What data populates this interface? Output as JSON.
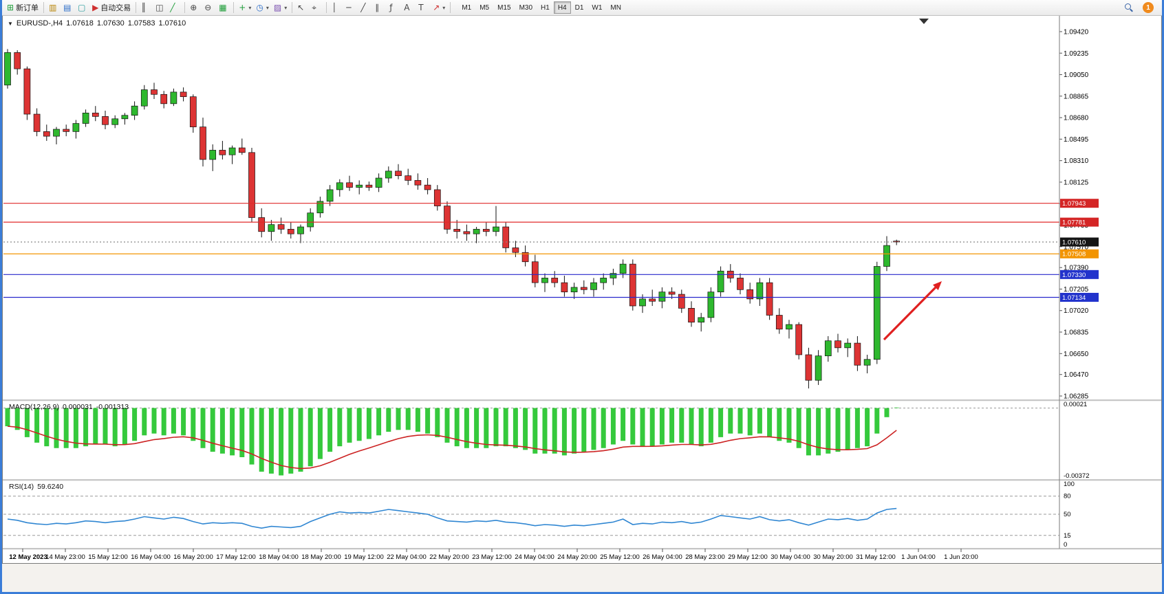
{
  "toolbar": {
    "new_order": "新订单",
    "auto_trading": "自动交易",
    "timeframes": [
      "M1",
      "M5",
      "M15",
      "M30",
      "H1",
      "H4",
      "D1",
      "W1",
      "MN"
    ],
    "active_timeframe": "H4",
    "notification_badge": "1"
  },
  "icons": {
    "new_order": "⊞",
    "profiles": "▥",
    "market_watch": "▤",
    "navigator": "▢",
    "auto_trading": "▶",
    "bars": "║",
    "candles": "◫",
    "line_chart": "╱",
    "zoom_in": "⊕",
    "zoom_out": "⊖",
    "tile": "▦",
    "indicators": "+",
    "periods": "◷",
    "templates": "▨",
    "cursor": "↖",
    "crosshair": "⌖",
    "vline": "│",
    "hline": "─",
    "trendline": "╱",
    "channel": "∥",
    "fibonacci": "ƒ",
    "text": "A",
    "label": "T",
    "arrows": "↗",
    "caret": "▾",
    "collapse": "▼"
  },
  "chart_header": {
    "symbol_period": "EURUSD-,H4",
    "open": "1.07618",
    "high": "1.07630",
    "low": "1.07583",
    "close": "1.07610"
  },
  "price_axis": {
    "labels": [
      "1.09420",
      "1.09235",
      "1.09050",
      "1.08865",
      "1.08680",
      "1.08495",
      "1.08310",
      "1.08125",
      "1.07940",
      "1.07755",
      "1.07570",
      "1.07390",
      "1.07205",
      "1.07020",
      "1.06835",
      "1.06650",
      "1.06470",
      "1.06285"
    ],
    "tags": [
      {
        "text": "1.07943",
        "price": 1.07943,
        "bg": "#d42525",
        "line": "#e02828",
        "style": "solid"
      },
      {
        "text": "1.07781",
        "price": 1.07781,
        "bg": "#d42525",
        "line": "#e02828",
        "style": "solid"
      },
      {
        "text": "1.07610",
        "price": 1.0761,
        "bg": "#151515",
        "line": "#888888",
        "style": "dotted"
      },
      {
        "text": "1.07508",
        "price": 1.07508,
        "bg": "#f29400",
        "line": "#f29400",
        "style": "solid"
      },
      {
        "text": "1.07330",
        "price": 1.0733,
        "bg": "#2233cc",
        "line": "#2727cc",
        "style": "solid"
      },
      {
        "text": "1.07134",
        "price": 1.07134,
        "bg": "#2233cc",
        "line": "#2727cc",
        "style": "solid"
      }
    ]
  },
  "chart_data": {
    "type": "candlestick",
    "title": "EURUSD- H4",
    "y_range": [
      1.06285,
      1.0942
    ],
    "colors": {
      "up": "#2eb82e",
      "down": "#dd3434"
    },
    "x_labels": [
      "12 May 2023",
      "14 May 23:00",
      "15 May 12:00",
      "16 May 04:00",
      "16 May 20:00",
      "17 May 12:00",
      "18 May 04:00",
      "18 May 20:00",
      "19 May 12:00",
      "22 May 04:00",
      "22 May 20:00",
      "23 May 12:00",
      "24 May 04:00",
      "24 May 20:00",
      "25 May 12:00",
      "26 May 04:00",
      "28 May 23:00",
      "29 May 12:00",
      "30 May 04:00",
      "30 May 20:00",
      "31 May 12:00",
      "1 Jun 04:00",
      "1 Jun 20:00"
    ],
    "candles": [
      [
        1.0896,
        1.0927,
        1.0893,
        1.0924
      ],
      [
        1.0924,
        1.0926,
        1.0905,
        1.091
      ],
      [
        1.091,
        1.0912,
        1.0866,
        1.0871
      ],
      [
        1.0871,
        1.0876,
        1.0852,
        1.0856
      ],
      [
        1.0856,
        1.0862,
        1.0848,
        1.0852
      ],
      [
        1.0852,
        1.086,
        1.0845,
        1.0858
      ],
      [
        1.0858,
        1.0862,
        1.0852,
        1.0856
      ],
      [
        1.0856,
        1.0866,
        1.085,
        1.0863
      ],
      [
        1.0863,
        1.0875,
        1.086,
        1.0872
      ],
      [
        1.0872,
        1.0878,
        1.0865,
        1.0869
      ],
      [
        1.0869,
        1.0874,
        1.0858,
        1.0862
      ],
      [
        1.0862,
        1.087,
        1.0859,
        1.0867
      ],
      [
        1.0867,
        1.0872,
        1.0862,
        1.087
      ],
      [
        1.087,
        1.0882,
        1.0866,
        1.0878
      ],
      [
        1.0878,
        1.0896,
        1.0875,
        1.0892
      ],
      [
        1.0892,
        1.0898,
        1.0884,
        1.0888
      ],
      [
        1.0888,
        1.0891,
        1.0876,
        1.088
      ],
      [
        1.088,
        1.0893,
        1.0878,
        1.089
      ],
      [
        1.089,
        1.0894,
        1.0882,
        1.0886
      ],
      [
        1.0886,
        1.0888,
        1.0855,
        1.086
      ],
      [
        1.086,
        1.0868,
        1.0826,
        1.0832
      ],
      [
        1.0832,
        1.0845,
        1.0822,
        1.084
      ],
      [
        1.084,
        1.0848,
        1.0832,
        1.0836
      ],
      [
        1.0836,
        1.0844,
        1.0828,
        1.0842
      ],
      [
        1.0842,
        1.085,
        1.0836,
        1.0838
      ],
      [
        1.0838,
        1.0842,
        1.0778,
        1.0782
      ],
      [
        1.0782,
        1.079,
        1.0765,
        1.077
      ],
      [
        1.077,
        1.078,
        1.0762,
        1.0776
      ],
      [
        1.0776,
        1.0782,
        1.0768,
        1.0772
      ],
      [
        1.0772,
        1.0778,
        1.0764,
        1.0768
      ],
      [
        1.0768,
        1.0776,
        1.076,
        1.0774
      ],
      [
        1.0774,
        1.079,
        1.077,
        1.0786
      ],
      [
        1.0786,
        1.08,
        1.0782,
        1.0796
      ],
      [
        1.0796,
        1.081,
        1.0792,
        1.0806
      ],
      [
        1.0806,
        1.0815,
        1.08,
        1.0812
      ],
      [
        1.0812,
        1.0818,
        1.0805,
        1.0808
      ],
      [
        1.0808,
        1.0814,
        1.0802,
        1.081
      ],
      [
        1.081,
        1.0813,
        1.0805,
        1.0808
      ],
      [
        1.0808,
        1.082,
        1.0804,
        1.0816
      ],
      [
        1.0816,
        1.0826,
        1.0812,
        1.0822
      ],
      [
        1.0822,
        1.0828,
        1.0815,
        1.0818
      ],
      [
        1.0818,
        1.0824,
        1.081,
        1.0814
      ],
      [
        1.0814,
        1.082,
        1.0806,
        1.081
      ],
      [
        1.081,
        1.0816,
        1.0802,
        1.0806
      ],
      [
        1.0806,
        1.081,
        1.0788,
        1.0792
      ],
      [
        1.0792,
        1.0796,
        1.0768,
        1.0772
      ],
      [
        1.0772,
        1.078,
        1.0764,
        1.077
      ],
      [
        1.077,
        1.0776,
        1.0762,
        1.0768
      ],
      [
        1.0768,
        1.0774,
        1.076,
        1.0772
      ],
      [
        1.0772,
        1.0778,
        1.0766,
        1.077
      ],
      [
        1.077,
        1.0792,
        1.0766,
        1.0774
      ],
      [
        1.0774,
        1.0778,
        1.0752,
        1.0756
      ],
      [
        1.0756,
        1.0762,
        1.0748,
        1.0752
      ],
      [
        1.0752,
        1.0758,
        1.074,
        1.0744
      ],
      [
        1.0744,
        1.075,
        1.0722,
        1.0726
      ],
      [
        1.0726,
        1.0734,
        1.0718,
        1.073
      ],
      [
        1.073,
        1.0736,
        1.0722,
        1.0726
      ],
      [
        1.0726,
        1.0732,
        1.0714,
        1.0718
      ],
      [
        1.0718,
        1.0726,
        1.0712,
        1.0722
      ],
      [
        1.0722,
        1.0728,
        1.0716,
        1.072
      ],
      [
        1.072,
        1.073,
        1.0714,
        1.0726
      ],
      [
        1.0726,
        1.0734,
        1.072,
        1.073
      ],
      [
        1.073,
        1.0738,
        1.0724,
        1.0734
      ],
      [
        1.0734,
        1.0746,
        1.073,
        1.0742
      ],
      [
        1.0742,
        1.0746,
        1.0702,
        1.0706
      ],
      [
        1.0706,
        1.0716,
        1.07,
        1.0712
      ],
      [
        1.0712,
        1.072,
        1.0706,
        1.071
      ],
      [
        1.071,
        1.0722,
        1.0704,
        1.0718
      ],
      [
        1.0718,
        1.0722,
        1.0712,
        1.0716
      ],
      [
        1.0716,
        1.072,
        1.07,
        1.0704
      ],
      [
        1.0704,
        1.071,
        1.0688,
        1.0692
      ],
      [
        1.0692,
        1.07,
        1.0684,
        1.0696
      ],
      [
        1.0696,
        1.0722,
        1.0692,
        1.0718
      ],
      [
        1.0718,
        1.074,
        1.0714,
        1.0736
      ],
      [
        1.0736,
        1.0742,
        1.0726,
        1.073
      ],
      [
        1.073,
        1.0734,
        1.0716,
        1.072
      ],
      [
        1.072,
        1.0726,
        1.0708,
        1.0712
      ],
      [
        1.0712,
        1.073,
        1.0706,
        1.0726
      ],
      [
        1.0726,
        1.073,
        1.0694,
        1.0698
      ],
      [
        1.0698,
        1.0704,
        1.0682,
        1.0686
      ],
      [
        1.0686,
        1.0694,
        1.0678,
        1.069
      ],
      [
        1.069,
        1.0692,
        1.066,
        1.0664
      ],
      [
        1.0664,
        1.067,
        1.0635,
        1.0642
      ],
      [
        1.0642,
        1.0668,
        1.0638,
        1.0663
      ],
      [
        1.0663,
        1.068,
        1.0658,
        1.0676
      ],
      [
        1.0676,
        1.0682,
        1.0666,
        1.067
      ],
      [
        1.067,
        1.0678,
        1.0662,
        1.0674
      ],
      [
        1.0674,
        1.068,
        1.065,
        1.0655
      ],
      [
        1.0655,
        1.0664,
        1.0648,
        1.066
      ],
      [
        1.066,
        1.0744,
        1.0656,
        1.074
      ],
      [
        1.074,
        1.0766,
        1.0736,
        1.0758
      ],
      [
        1.07618,
        1.0763,
        1.07583,
        1.0761
      ]
    ]
  },
  "macd": {
    "name": "MACD(12,26,9)",
    "value": "0.000031",
    "signal_value": "-0.001313",
    "axis_labels": [
      {
        "text": "0.00021",
        "value": 0.00021
      },
      {
        "text": "-0.00372",
        "value": -0.00372
      }
    ],
    "values": [
      -0.001,
      -0.0012,
      -0.0016,
      -0.0019,
      -0.0021,
      -0.0022,
      -0.0022,
      -0.0022,
      -0.0021,
      -0.002,
      -0.002,
      -0.0021,
      -0.002,
      -0.0018,
      -0.0015,
      -0.0014,
      -0.0015,
      -0.0014,
      -0.0015,
      -0.0018,
      -0.0022,
      -0.0024,
      -0.0025,
      -0.0026,
      -0.0027,
      -0.0031,
      -0.0035,
      -0.0036,
      -0.0037,
      -0.0036,
      -0.0035,
      -0.0032,
      -0.0028,
      -0.0024,
      -0.0021,
      -0.0019,
      -0.0018,
      -0.0017,
      -0.0015,
      -0.0013,
      -0.0012,
      -0.0012,
      -0.0013,
      -0.0014,
      -0.0016,
      -0.0019,
      -0.0021,
      -0.0022,
      -0.0022,
      -0.0022,
      -0.0021,
      -0.0021,
      -0.0022,
      -0.0023,
      -0.0025,
      -0.0025,
      -0.0025,
      -0.0026,
      -0.0025,
      -0.0024,
      -0.0023,
      -0.0022,
      -0.002,
      -0.0018,
      -0.002,
      -0.0021,
      -0.0021,
      -0.002,
      -0.0019,
      -0.0019,
      -0.002,
      -0.0021,
      -0.0019,
      -0.0016,
      -0.0014,
      -0.0014,
      -0.0015,
      -0.0014,
      -0.0016,
      -0.0018,
      -0.0019,
      -0.0022,
      -0.0026,
      -0.0026,
      -0.0025,
      -0.0024,
      -0.0023,
      -0.0022,
      -0.0021,
      -0.0014,
      -0.0005,
      3.1e-05
    ]
  },
  "rsi": {
    "name": "RSI(14)",
    "value": "59.6240",
    "levels": [
      80,
      50,
      15
    ],
    "axis_labels": [
      {
        "text": "100",
        "value": 100
      },
      {
        "text": "80",
        "value": 80
      },
      {
        "text": "50",
        "value": 50
      },
      {
        "text": "15",
        "value": 15
      },
      {
        "text": "0",
        "value": 0
      }
    ],
    "values": [
      42,
      40,
      36,
      34,
      33,
      35,
      34,
      36,
      39,
      38,
      36,
      38,
      39,
      42,
      46,
      44,
      42,
      45,
      43,
      38,
      34,
      36,
      35,
      36,
      35,
      30,
      27,
      30,
      29,
      28,
      30,
      38,
      44,
      50,
      54,
      52,
      53,
      52,
      55,
      58,
      56,
      54,
      52,
      50,
      44,
      39,
      38,
      37,
      39,
      38,
      40,
      37,
      36,
      34,
      31,
      33,
      32,
      30,
      32,
      31,
      33,
      35,
      37,
      42,
      33,
      35,
      34,
      37,
      36,
      38,
      35,
      37,
      42,
      48,
      46,
      44,
      42,
      46,
      41,
      39,
      41,
      36,
      32,
      37,
      42,
      41,
      43,
      40,
      42,
      52,
      58,
      59.6
    ]
  },
  "annotation_arrow": {
    "color": "#e02020"
  }
}
